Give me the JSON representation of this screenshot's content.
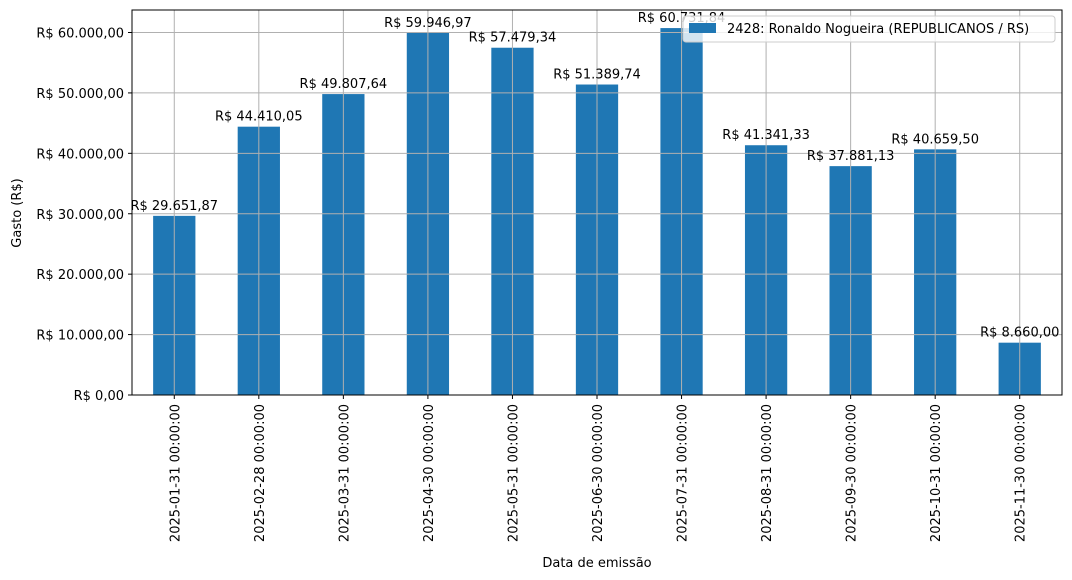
{
  "chart_data": {
    "type": "bar",
    "title": "",
    "xlabel": "Data de emissão",
    "ylabel": "Gasto (R$)",
    "ylim": [
      0,
      63500
    ],
    "grid": true,
    "legend_position": "upper right",
    "bar_color": "#1f77b4",
    "grid_color": "#b0b0b0",
    "categories": [
      "2025-01-31 00:00:00",
      "2025-02-28 00:00:00",
      "2025-03-31 00:00:00",
      "2025-04-30 00:00:00",
      "2025-05-31 00:00:00",
      "2025-06-30 00:00:00",
      "2025-07-31 00:00:00",
      "2025-08-31 00:00:00",
      "2025-09-30 00:00:00",
      "2025-10-31 00:00:00",
      "2025-11-30 00:00:00"
    ],
    "series": [
      {
        "name": "2428: Ronaldo Nogueira (REPUBLICANOS / RS)",
        "values": [
          29651.87,
          44410.05,
          49807.64,
          59946.97,
          57479.34,
          51389.74,
          60731.84,
          41341.33,
          37881.13,
          40659.5,
          8660.0
        ],
        "data_labels": [
          "R$ 29.651,87",
          "R$ 44.410,05",
          "R$ 49.807,64",
          "R$ 59.946,97",
          "R$ 57.479,34",
          "R$ 51.389,74",
          "R$ 60.731,84",
          "R$ 41.341,33",
          "R$ 37.881,13",
          "R$ 40.659,50",
          "R$ 8.660,00"
        ]
      }
    ],
    "yticks": [
      0,
      10000,
      20000,
      30000,
      40000,
      50000,
      60000
    ],
    "ytick_labels": [
      "R$ 0,00",
      "R$ 10.000,00",
      "R$ 20.000,00",
      "R$ 30.000,00",
      "R$ 40.000,00",
      "R$ 50.000,00",
      "R$ 60.000,00"
    ]
  }
}
